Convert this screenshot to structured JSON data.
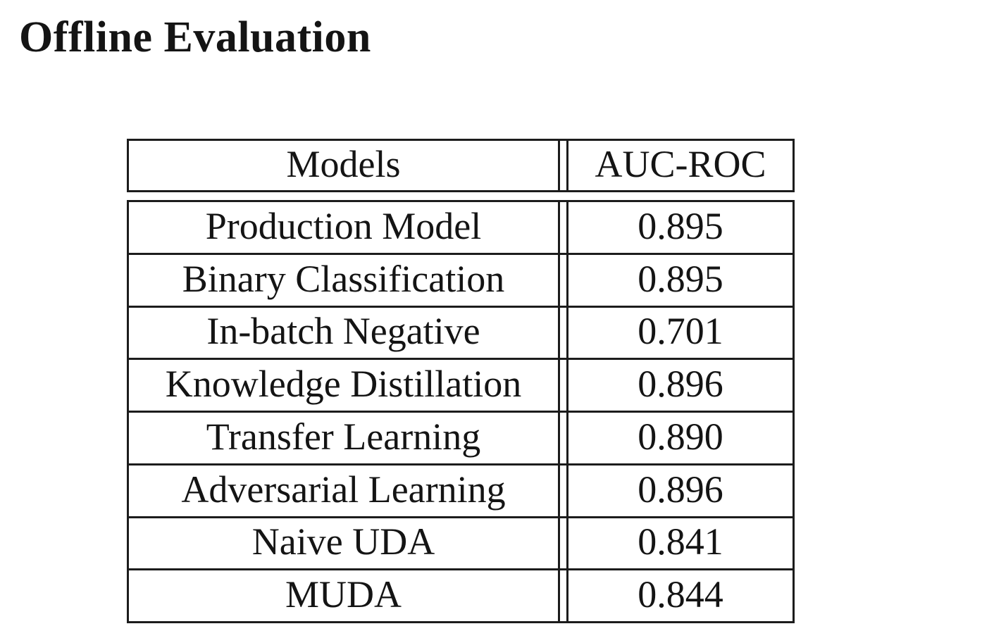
{
  "page": {
    "title": "Offline Evaluation"
  },
  "table": {
    "headers": [
      "Models",
      "AUC-ROC"
    ],
    "rows": [
      {
        "model": "Production Model",
        "auc": "0.895"
      },
      {
        "model": "Binary Classification",
        "auc": "0.895"
      },
      {
        "model": "In-batch Negative",
        "auc": "0.701"
      },
      {
        "model": "Knowledge Distillation",
        "auc": "0.896"
      },
      {
        "model": "Transfer Learning",
        "auc": "0.890"
      },
      {
        "model": "Adversarial Learning",
        "auc": "0.896"
      },
      {
        "model": "Naive UDA",
        "auc": "0.841"
      },
      {
        "model": "MUDA",
        "auc": "0.844"
      }
    ]
  },
  "colors": {
    "text": "#141414",
    "border": "#1c1c1c",
    "background": "#ffffff"
  }
}
